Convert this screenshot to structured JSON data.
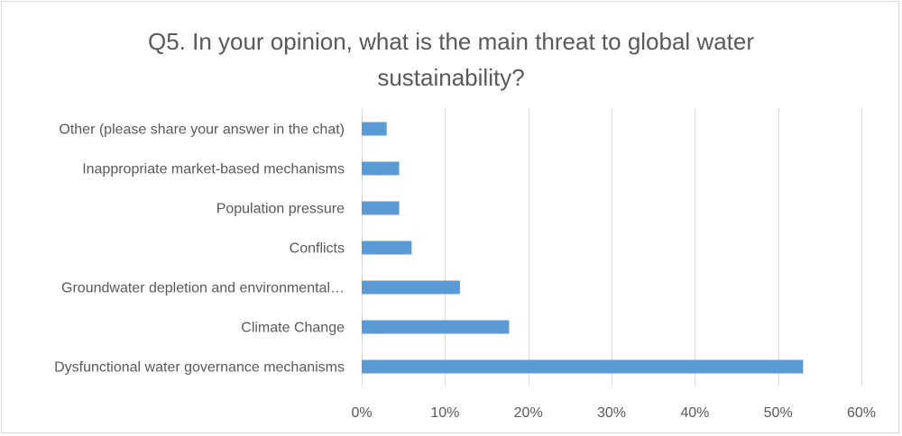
{
  "chart_data": {
    "type": "bar",
    "orientation": "horizontal",
    "title": "Q5. In your opinion, what is the main threat to global water sustainability?",
    "xlabel": "",
    "ylabel": "",
    "categories": [
      "Other (please share your answer in the chat)",
      "Inappropriate market-based mechanisms",
      "Population pressure",
      "Conflicts",
      "Groundwater depletion and environmental…",
      "Climate Change",
      "Dysfunctional water governance mechanisms"
    ],
    "values": [
      0.03,
      0.045,
      0.045,
      0.06,
      0.118,
      0.177,
      0.53
    ],
    "xlim": [
      0,
      0.6
    ],
    "xticks": [
      0,
      0.1,
      0.2,
      0.3,
      0.4,
      0.5,
      0.6
    ],
    "xtick_labels": [
      "0%",
      "10%",
      "20%",
      "30%",
      "40%",
      "50%",
      "60%"
    ],
    "grid": true,
    "legend": "none",
    "bar_color": "#5b9bd5"
  }
}
